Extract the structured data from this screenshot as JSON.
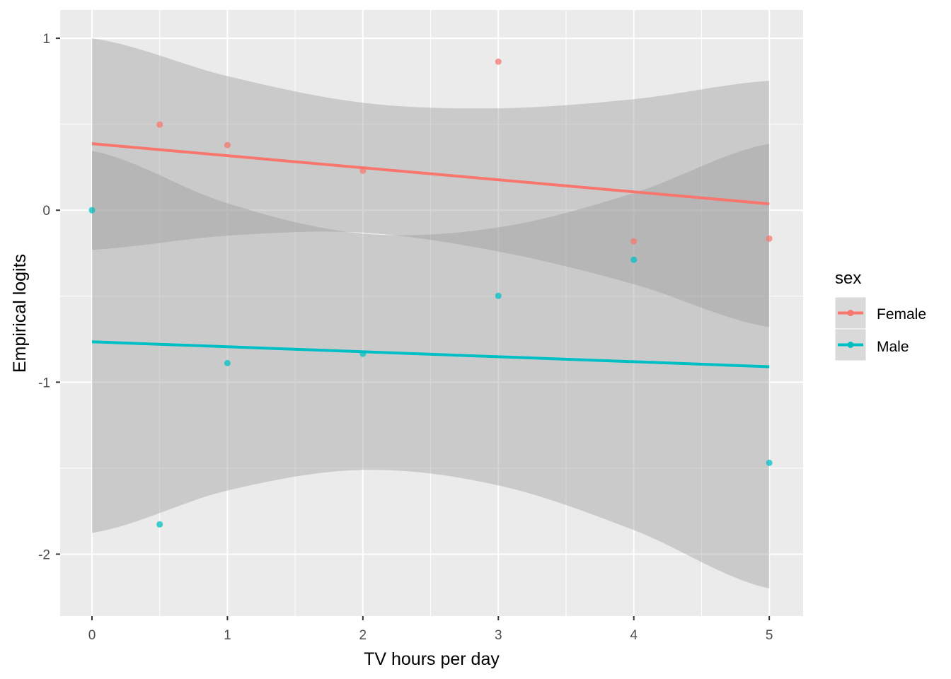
{
  "chart_data": {
    "type": "scatter",
    "title": "",
    "xlabel": "TV hours per day",
    "ylabel": "Empirical logits",
    "xlim": [
      -0.235,
      5.25
    ],
    "ylim": [
      -2.36,
      1.165
    ],
    "xticks": [
      0,
      1,
      2,
      3,
      4,
      5
    ],
    "yticks": [
      -2,
      -1,
      0,
      1
    ],
    "grid": true,
    "legend": {
      "title": "sex",
      "placement": "right",
      "entries": [
        "Female",
        "Male"
      ]
    },
    "series": [
      {
        "name": "Female",
        "color": "#F8766D",
        "points": {
          "x": [
            0.5,
            1,
            2,
            3,
            4,
            5
          ],
          "y": [
            0.498,
            0.379,
            0.23,
            0.864,
            -0.181,
            -0.165
          ]
        },
        "fit_line": {
          "x": [
            0,
            5
          ],
          "y": [
            0.387,
            0.037
          ]
        },
        "ribbon": {
          "x": [
            0,
            1,
            2,
            3,
            4,
            5
          ],
          "upper": [
            1.0,
            0.78,
            0.625,
            0.593,
            0.646,
            0.753
          ],
          "lower": [
            -0.23,
            -0.148,
            -0.13,
            -0.24,
            -0.43,
            -0.68
          ]
        }
      },
      {
        "name": "Male",
        "color": "#00BFC4",
        "points": {
          "x": [
            0,
            0.5,
            1,
            2,
            3,
            4,
            5
          ],
          "y": [
            0.0,
            -1.827,
            -0.889,
            -0.835,
            -0.498,
            -0.288,
            -1.469
          ]
        },
        "fit_line": {
          "x": [
            0,
            5
          ],
          "y": [
            -0.765,
            -0.91
          ]
        },
        "ribbon": {
          "x": [
            0,
            1,
            2,
            3,
            4,
            5
          ],
          "upper": [
            0.346,
            0.04,
            -0.136,
            -0.1,
            0.1,
            0.387
          ],
          "lower": [
            -1.877,
            -1.63,
            -1.51,
            -1.6,
            -1.86,
            -2.2
          ]
        }
      }
    ]
  }
}
